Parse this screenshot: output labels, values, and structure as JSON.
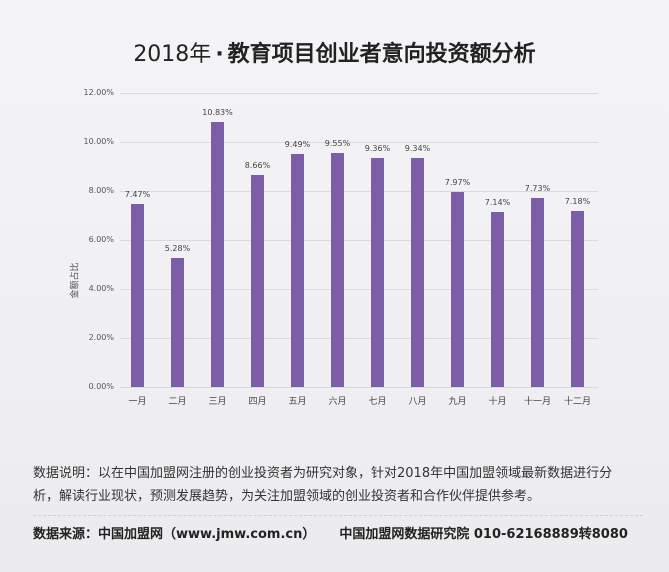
{
  "header": {
    "title_year": "2018年",
    "title_dot": "·",
    "title_main": "教育项目创业者意向投资额分析"
  },
  "chart_data": {
    "type": "bar",
    "title": "2018年 · 教育项目创业者意向投资额分析",
    "xlabel": "",
    "ylabel": "金额占比",
    "categories": [
      "一月",
      "二月",
      "三月",
      "四月",
      "五月",
      "六月",
      "七月",
      "八月",
      "九月",
      "十月",
      "十一月",
      "十二月"
    ],
    "values": [
      7.47,
      5.28,
      10.83,
      8.66,
      9.49,
      9.55,
      9.36,
      9.34,
      7.97,
      7.14,
      7.73,
      7.18
    ],
    "value_labels": [
      "7.47%",
      "5.28%",
      "10.83%",
      "8.66%",
      "9.49%",
      "9.55%",
      "9.36%",
      "9.34%",
      "7.97%",
      "7.14%",
      "7.73%",
      "7.18%"
    ],
    "yticks": [
      "0.00%",
      "2.00%",
      "4.00%",
      "6.00%",
      "8.00%",
      "10.00%",
      "12.00%"
    ],
    "ylim": [
      0,
      12
    ],
    "grid": true,
    "legend": "none",
    "bar_color": "#7b5ea7",
    "unit": "%"
  },
  "footer": {
    "note_line1": "数据说明：以在中国加盟网注册的创业投资者为研究对象，针对2018年中国加盟领域最新数据进行分",
    "note_line2": "析，解读行业现状，预测发展趋势，为关注加盟领域的创业投资者和合作伙伴提供参考。",
    "source_left": "数据来源：中国加盟网（www.jmw.com.cn）",
    "source_right": "中国加盟网数据研究院  010-62168889转8080"
  }
}
